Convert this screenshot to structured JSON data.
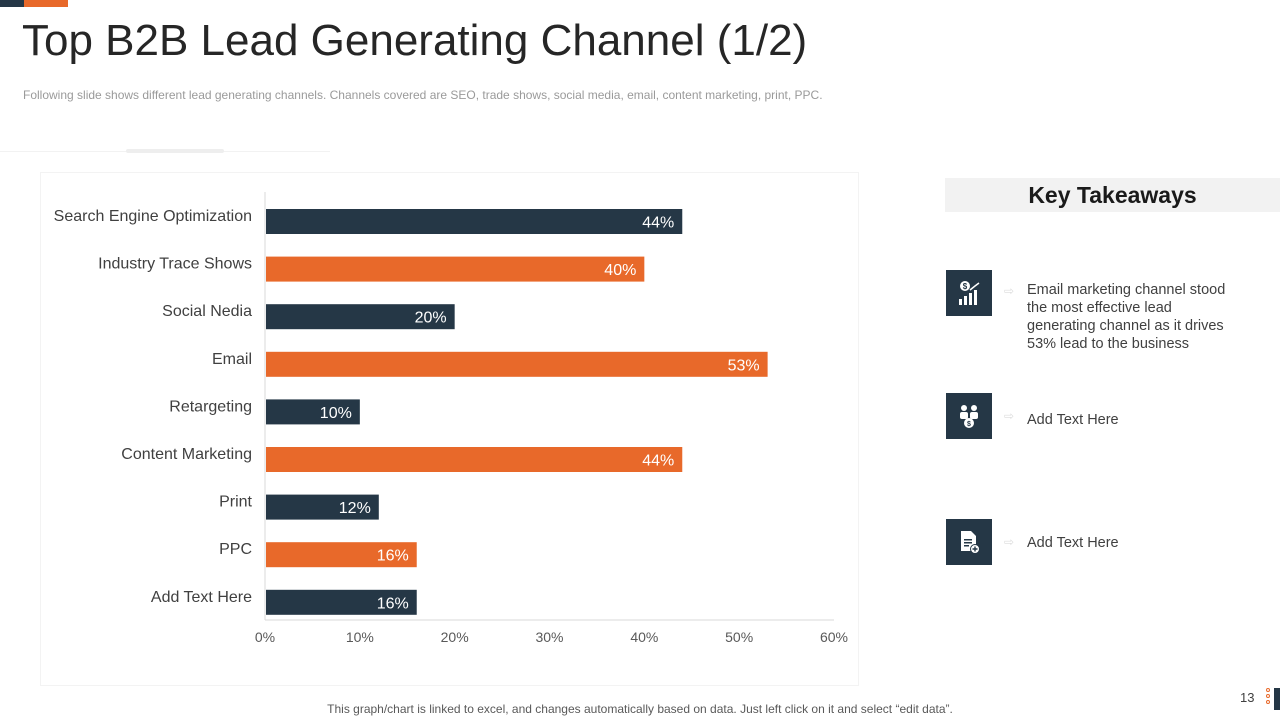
{
  "slide": {
    "title": "Top B2B Lead Generating Channel (1/2)",
    "subtitle": "Following slide shows different  lead generating channels. Channels covered  are SEO, trade shows, social media, email, content marketing, print, PPC.",
    "footnote": "This graph/chart is linked to excel, and changes automatically based on data. Just left click on it and select “edit data”.",
    "page_number": "13"
  },
  "colors": {
    "navy": "#253746",
    "orange": "#e8692a"
  },
  "chart_data": {
    "type": "bar",
    "orientation": "horizontal",
    "title": "",
    "xlabel": "",
    "ylabel": "",
    "categories": [
      "Search Engine Optimization",
      "Industry Trace Shows",
      "Social Nedia",
      "Email",
      "Retargeting",
      "Content Marketing",
      "Print",
      "PPC",
      "Add Text Here"
    ],
    "values": [
      44,
      40,
      20,
      53,
      10,
      44,
      12,
      16,
      16
    ],
    "value_labels": [
      "44%",
      "40%",
      "20%",
      "53%",
      "10%",
      "44%",
      "12%",
      "16%",
      "16%"
    ],
    "bar_colors": [
      "#253746",
      "#e8692a",
      "#253746",
      "#e8692a",
      "#253746",
      "#e8692a",
      "#253746",
      "#e8692a",
      "#253746"
    ],
    "xlim": [
      0,
      60
    ],
    "xticks": [
      0,
      10,
      20,
      30,
      40,
      50,
      60
    ],
    "xtick_labels": [
      "0%",
      "10%",
      "20%",
      "30%",
      "40%",
      "50%",
      "60%"
    ],
    "grid": false,
    "legend": "none"
  },
  "takeaways": {
    "header": "Key Takeaways",
    "items": [
      {
        "icon": "money-growth-chart-icon",
        "text": "Email marketing channel stood the most effective lead generating channel as it drives 53% lead to the business"
      },
      {
        "icon": "people-money-icon",
        "text": "Add Text Here"
      },
      {
        "icon": "document-add-icon",
        "text": "Add Text Here"
      }
    ]
  }
}
